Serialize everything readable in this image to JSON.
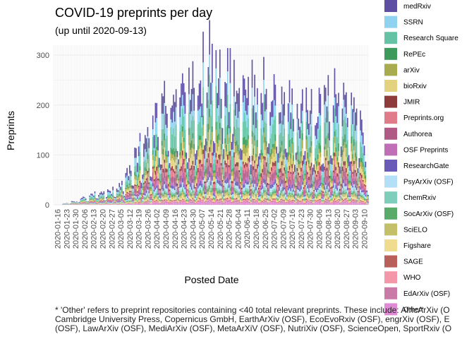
{
  "chart_data": {
    "type": "bar",
    "stacked": true,
    "title": "COVID-19 preprints per day",
    "subtitle": "(up until 2020-09-13)",
    "xlabel": "Posted Date",
    "ylabel": "Preprints",
    "x_range": [
      "2020-01-13",
      "2020-09-13"
    ],
    "ylim": [
      0,
      320
    ],
    "yticks": [
      0,
      100,
      200,
      300
    ],
    "xticks": [
      "2020-01-16",
      "2020-01-23",
      "2020-01-30",
      "2020-02-06",
      "2020-02-13",
      "2020-02-20",
      "2020-02-27",
      "2020-03-05",
      "2020-03-12",
      "2020-03-19",
      "2020-03-26",
      "2020-04-02",
      "2020-04-09",
      "2020-04-16",
      "2020-04-23",
      "2020-04-30",
      "2020-05-07",
      "2020-05-14",
      "2020-05-21",
      "2020-05-28",
      "2020-06-04",
      "2020-06-11",
      "2020-06-18",
      "2020-06-25",
      "2020-07-02",
      "2020-07-09",
      "2020-07-16",
      "2020-07-23",
      "2020-07-30",
      "2020-08-06",
      "2020-08-13",
      "2020-08-20",
      "2020-08-27",
      "2020-09-03",
      "2020-09-10"
    ],
    "grid": true,
    "legend_position": "right",
    "series": [
      {
        "name": "medRxiv",
        "color": "#5e4fa2"
      },
      {
        "name": "SSRN",
        "color": "#8fd3f0"
      },
      {
        "name": "Research Square",
        "color": "#66c2a5"
      },
      {
        "name": "RePEc",
        "color": "#3d9a5a"
      },
      {
        "name": "arXiv",
        "color": "#a8ab4e"
      },
      {
        "name": "bioRxiv",
        "color": "#e3d27f"
      },
      {
        "name": "JMIR",
        "color": "#8e3b3b"
      },
      {
        "name": "Preprints.org",
        "color": "#e07b8a"
      },
      {
        "name": "Authorea",
        "color": "#b05b85"
      },
      {
        "name": "OSF Preprints",
        "color": "#c06fb6"
      },
      {
        "name": "ResearchGate",
        "color": "#6a5bb8"
      },
      {
        "name": "PsyArXiv (OSF)",
        "color": "#b3e0f7"
      },
      {
        "name": "ChemRxiv",
        "color": "#7fcdbb"
      },
      {
        "name": "SocArXiv (OSF)",
        "color": "#5aaa6a"
      },
      {
        "name": "SciELO",
        "color": "#c4c06a"
      },
      {
        "name": "Figshare",
        "color": "#efdc8f"
      },
      {
        "name": "SAGE",
        "color": "#b9605a"
      },
      {
        "name": "WHO",
        "color": "#f497a8"
      },
      {
        "name": "EdArXiv (OSF)",
        "color": "#c97aa6"
      },
      {
        "name": "Other*",
        "color": "#e08ad6"
      }
    ],
    "daily_totals": [
      {
        "x": "2020-01-20",
        "y": 2
      },
      {
        "x": "2020-01-27",
        "y": 6
      },
      {
        "x": "2020-02-03",
        "y": 12
      },
      {
        "x": "2020-02-10",
        "y": 20
      },
      {
        "x": "2020-02-17",
        "y": 25
      },
      {
        "x": "2020-02-24",
        "y": 30
      },
      {
        "x": "2020-03-02",
        "y": 40
      },
      {
        "x": "2020-03-09",
        "y": 55
      },
      {
        "x": "2020-03-16",
        "y": 95
      },
      {
        "x": "2020-03-23",
        "y": 140
      },
      {
        "x": "2020-03-30",
        "y": 175
      },
      {
        "x": "2020-04-06",
        "y": 205
      },
      {
        "x": "2020-04-13",
        "y": 225
      },
      {
        "x": "2020-04-20",
        "y": 240
      },
      {
        "x": "2020-04-27",
        "y": 255
      },
      {
        "x": "2020-05-04",
        "y": 270
      },
      {
        "x": "2020-05-11",
        "y": 285
      },
      {
        "x": "2020-05-18",
        "y": 300
      },
      {
        "x": "2020-05-25",
        "y": 280
      },
      {
        "x": "2020-06-01",
        "y": 270
      },
      {
        "x": "2020-06-08",
        "y": 255
      },
      {
        "x": "2020-06-15",
        "y": 245
      },
      {
        "x": "2020-06-22",
        "y": 235
      },
      {
        "x": "2020-06-29",
        "y": 230
      },
      {
        "x": "2020-07-06",
        "y": 225
      },
      {
        "x": "2020-07-13",
        "y": 225
      },
      {
        "x": "2020-07-20",
        "y": 220
      },
      {
        "x": "2020-07-27",
        "y": 220
      },
      {
        "x": "2020-08-03",
        "y": 215
      },
      {
        "x": "2020-08-10",
        "y": 215
      },
      {
        "x": "2020-08-17",
        "y": 215
      },
      {
        "x": "2020-08-24",
        "y": 225
      },
      {
        "x": "2020-08-31",
        "y": 240
      },
      {
        "x": "2020-09-07",
        "y": 215
      },
      {
        "x": "2020-09-13",
        "y": 50
      }
    ],
    "caption_lines": [
      "* 'Other' refers to preprint repositories containing <40 total relevant preprints. These include: AfricArXiv (O",
      "Cambridge University Press, Copernicus GmbH, EarthArXiv (OSF), EcoEvoRxiv (OSF), engrXiv (OSF), E",
      "(OSF), LawArXiv (OSF), MediArXiv (OSF), MetaArXiV (OSF), NutriXiv (OSF), ScienceOpen, SportRxiv (O"
    ]
  }
}
